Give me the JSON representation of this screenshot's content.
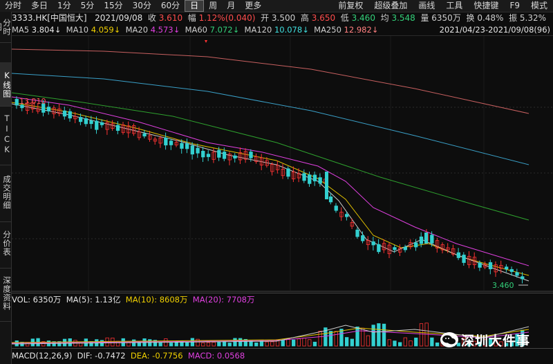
{
  "toolbar": {
    "periods": [
      "分时",
      "多日",
      "1分",
      "5分",
      "15分",
      "30分",
      "60分",
      "日",
      "周",
      "月",
      "更多"
    ],
    "active_index": 7,
    "right_items": [
      "前复权",
      "超级叠加",
      "画线",
      "工具",
      "快捷键",
      "F9",
      "模式"
    ]
  },
  "info": {
    "code": "3333.HK[中国恒大]",
    "date": "2021/09/08",
    "close_label": "收",
    "close_value": "3.610",
    "change_label": "幅",
    "change_value": "1.12%(0.040)",
    "open_label": "开",
    "open_value": "3.500",
    "high_label": "高",
    "high_value": "3.650",
    "low_label": "低",
    "low_value": "3.460",
    "avg_label": "均",
    "avg_value": "3.548",
    "vol_label": "量",
    "vol_value": "6350万",
    "turnover_label": "换",
    "turnover_value": "0.48%",
    "amplitude_label": "振",
    "amplitude_value": "5.32%"
  },
  "ma": {
    "ma5_label": "MA5",
    "ma5_value": "3.804↓",
    "ma10_label": "MA10",
    "ma10_value": "4.059↓",
    "ma20_label": "MA20",
    "ma20_value": "4.573↓",
    "ma60_label": "MA60",
    "ma60_value": "7.072↓",
    "ma120_label": "MA120",
    "ma120_value": "10.078↓",
    "ma250_label": "MA250",
    "ma250_value": "12.982↓"
  },
  "range": "2021/04/23-2021/09/08(96)",
  "sidebar": [
    "分时图",
    "K线图",
    "TICK",
    "成交明细",
    "分价表",
    "深度资料"
  ],
  "chart": {
    "high_label": "13.010",
    "low_label": "3.460",
    "colors": {
      "up": "#ff3333",
      "down": "#33d0d0",
      "ma5": "#cccccc",
      "ma10": "#e0c000",
      "ma20": "#e040e0",
      "ma60": "#2ea02e",
      "ma120": "#3aa0c8",
      "ma250": "#c86060"
    }
  },
  "volume": {
    "label": "VOL: 6350万",
    "ma5": "MA(5): 1.13亿",
    "ma10": "MA(10): 8608万",
    "ma20": "MA(20): 7708万"
  },
  "macd": {
    "label": "MACD(12,26,9)",
    "dif": "DIF: -0.7472",
    "dea": "DEA: -0.7756",
    "macd": "MACD: 0.0568"
  },
  "watermark": {
    "text": "深圳大件事",
    "logo_icon": "wechat-icon"
  }
}
